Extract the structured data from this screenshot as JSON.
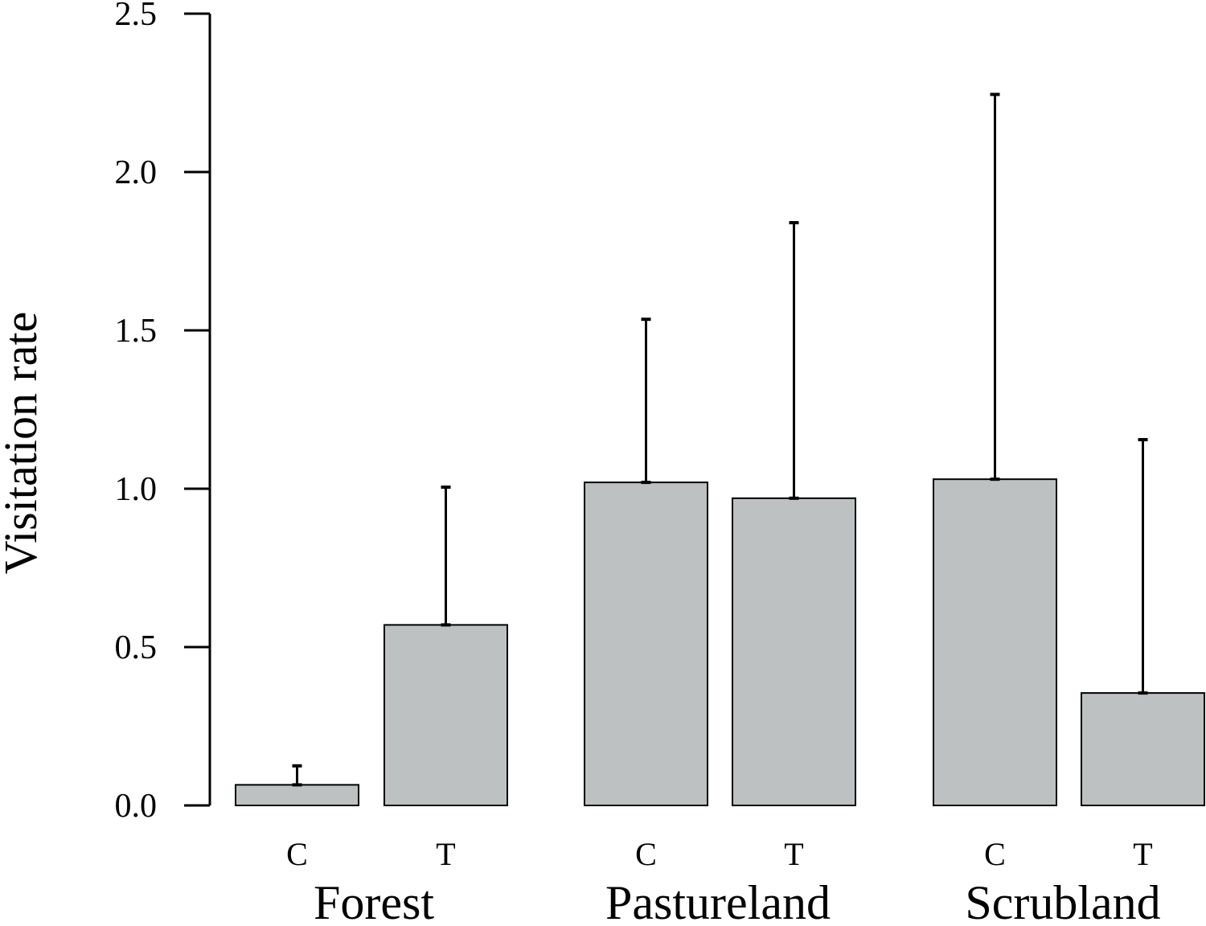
{
  "chart_data": {
    "type": "bar",
    "title": "",
    "xlabel": "",
    "ylabel": "Visitation rate",
    "ylim": [
      0,
      2.5
    ],
    "yticks": [
      "0.0",
      "0.5",
      "1.0",
      "1.5",
      "2.0",
      "2.5"
    ],
    "grid": false,
    "bar_color": "#bec1c2",
    "groups": [
      {
        "name": "Forest",
        "bars": [
          {
            "category": "C",
            "value": 0.065,
            "error_upper": 0.125
          },
          {
            "category": "T",
            "value": 0.57,
            "error_upper": 1.005
          }
        ]
      },
      {
        "name": "Pastureland",
        "bars": [
          {
            "category": "C",
            "value": 1.02,
            "error_upper": 1.535
          },
          {
            "category": "T",
            "value": 0.97,
            "error_upper": 1.84
          }
        ]
      },
      {
        "name": "Scrubland",
        "bars": [
          {
            "category": "C",
            "value": 1.03,
            "error_upper": 2.245
          },
          {
            "category": "T",
            "value": 0.355,
            "error_upper": 1.155
          }
        ]
      }
    ]
  }
}
